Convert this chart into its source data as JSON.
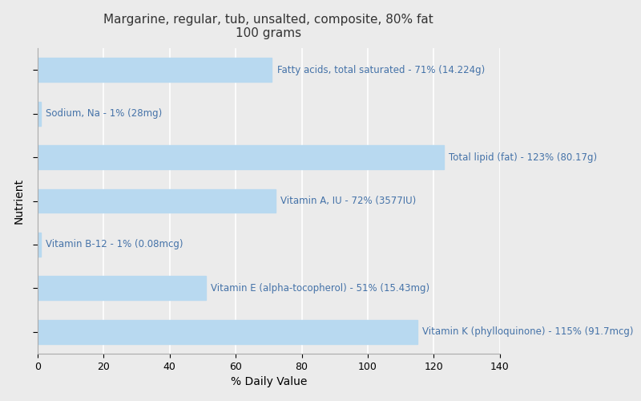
{
  "title_line1": "Margarine, regular, tub, unsalted, composite, 80% fat",
  "title_line2": "100 grams",
  "xlabel": "% Daily Value",
  "ylabel": "Nutrient",
  "background_color": "#ebebeb",
  "bar_color": "#b8d9f0",
  "nutrients_top_to_bottom": [
    "Fatty acids, total saturated",
    "Sodium, Na",
    "Total lipid (fat)",
    "Vitamin A, IU",
    "Vitamin B-12",
    "Vitamin E (alpha-tocopherol)",
    "Vitamin K (phylloquinone)"
  ],
  "values_top_to_bottom": [
    71,
    1,
    123,
    72,
    1,
    51,
    115
  ],
  "labels_top_to_bottom": [
    "Fatty acids, total saturated - 71% (14.224g)",
    "Sodium, Na - 1% (28mg)",
    "Total lipid (fat) - 123% (80.17g)",
    "Vitamin A, IU - 72% (3577IU)",
    "Vitamin B-12 - 1% (0.08mcg)",
    "Vitamin E (alpha-tocopherol) - 51% (15.43mg)",
    "Vitamin K (phylloquinone) - 115% (91.7mcg)"
  ],
  "label_color": "#4472a8",
  "xlim": [
    0,
    140
  ],
  "xticks": [
    0,
    20,
    40,
    60,
    80,
    100,
    120,
    140
  ],
  "title_fontsize": 11,
  "label_fontsize": 8.5,
  "axis_label_fontsize": 10,
  "tick_fontsize": 9,
  "grid_color": "#ffffff",
  "bar_height": 0.55
}
